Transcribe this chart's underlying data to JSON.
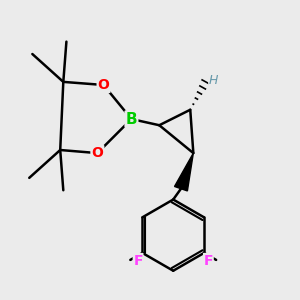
{
  "background_color": "#ebebeb",
  "atom_colors": {
    "B": "#00cc00",
    "O": "#ff0000",
    "F": "#ff44ff",
    "H_label": "#6699aa",
    "C": "#000000"
  },
  "bond_color": "#000000",
  "bond_width": 1.8
}
